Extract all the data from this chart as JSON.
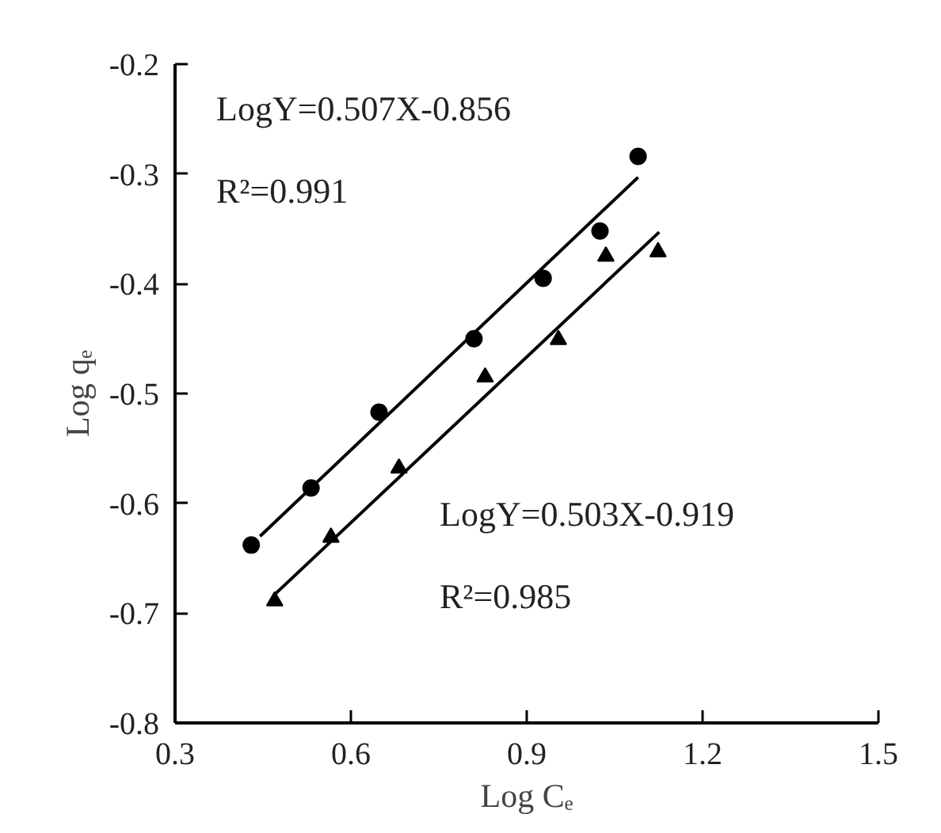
{
  "chart_data": {
    "type": "scatter",
    "xlabel": "Log Cₑ",
    "ylabel": "Log qₑ",
    "xlim": [
      0.3,
      1.5
    ],
    "xticks": [
      0.3,
      0.6,
      0.9,
      1.2,
      1.5
    ],
    "ylim": [
      -0.8,
      -0.2
    ],
    "yticks": [
      -0.8,
      -0.7,
      -0.6,
      -0.5,
      -0.4,
      -0.3,
      -0.2
    ],
    "grid": false,
    "series": [
      {
        "marker": "circle",
        "color": "#000000",
        "x": [
          0.43,
          0.532,
          0.648,
          0.81,
          0.928,
          1.025,
          1.09
        ],
        "values": [
          -0.638,
          -0.586,
          -0.517,
          -0.45,
          -0.395,
          -0.352,
          -0.284
        ]
      },
      {
        "marker": "triangle",
        "color": "#000000",
        "x": [
          0.47,
          0.566,
          0.682,
          0.829,
          0.954,
          1.035,
          1.124
        ],
        "values": [
          -0.689,
          -0.631,
          -0.568,
          -0.485,
          -0.451,
          -0.375,
          -0.371
        ]
      },
      {
        "type": "line",
        "line_style": "solid",
        "color": "#000000",
        "x": [
          0.445,
          1.09
        ],
        "values": [
          -0.63,
          -0.303
        ]
      },
      {
        "type": "line",
        "line_style": "solid",
        "color": "#000000",
        "x": [
          0.472,
          1.126
        ],
        "values": [
          -0.682,
          -0.353
        ]
      }
    ],
    "annotations": [
      "LogY=0.507X-0.856",
      "R²=0.991",
      "LogY=0.503X-0.919",
      "R²=0.985"
    ]
  }
}
